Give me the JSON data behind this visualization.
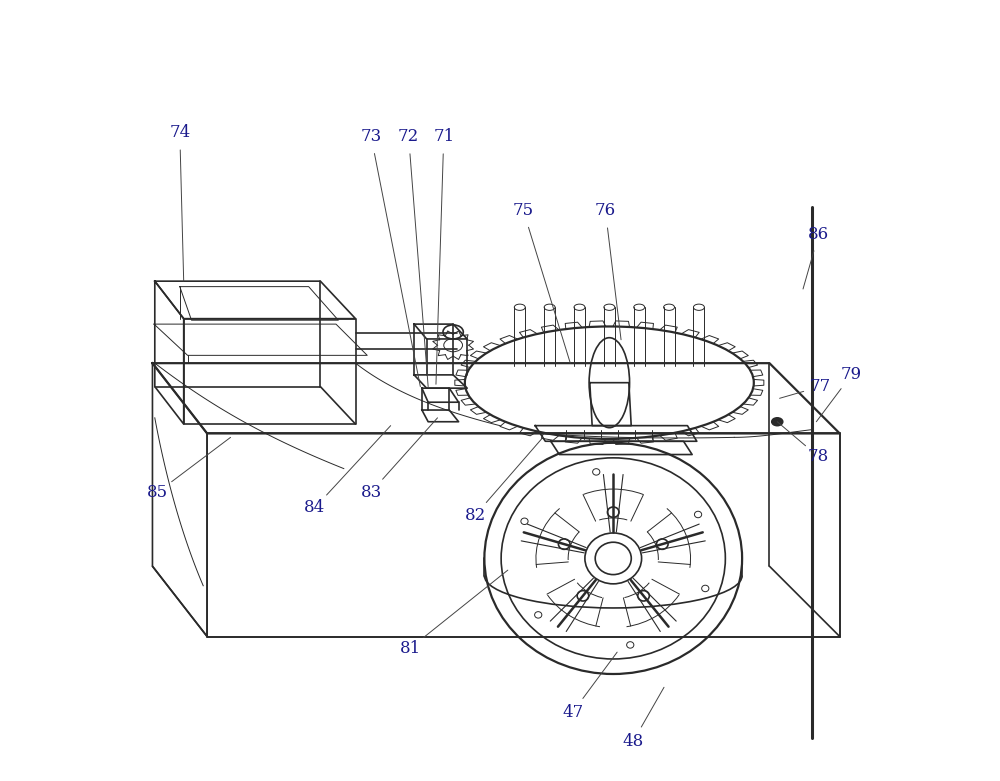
{
  "bg_color": "#ffffff",
  "line_color": "#2a2a2a",
  "label_color": "#1a1a8c",
  "line_width": 1.2,
  "thin_line": 0.7,
  "thick_line": 1.6
}
